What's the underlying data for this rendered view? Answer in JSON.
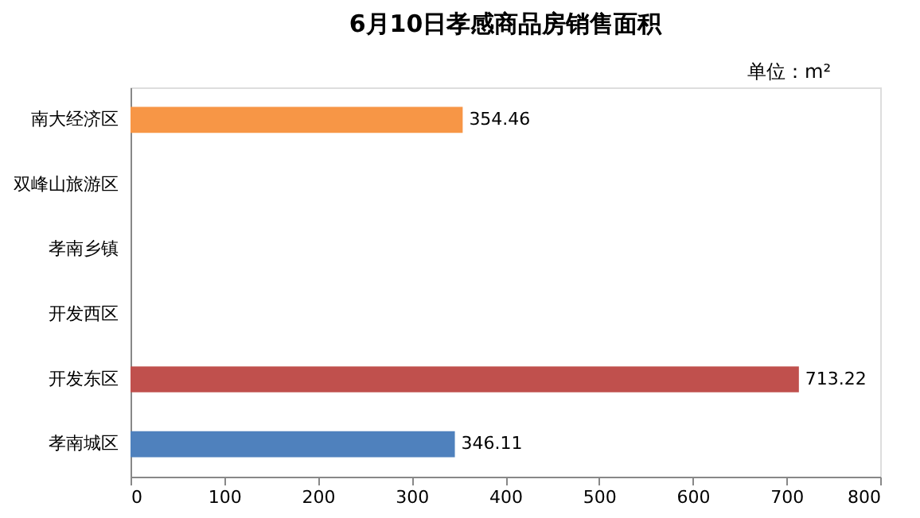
{
  "chart_data": {
    "type": "bar",
    "orientation": "horizontal",
    "title": "6月10日孝感商品房销售面积",
    "annotations": [
      "单位：m²"
    ],
    "categories": [
      "南大经济区",
      "双峰山旅游区",
      "孝南乡镇",
      "开发西区",
      "开发东区",
      "孝南城区"
    ],
    "values": [
      354.46,
      null,
      null,
      null,
      713.22,
      346.11
    ],
    "colors": [
      "#f79646",
      "#f79646",
      "#f79646",
      "#f79646",
      "#c0504d",
      "#4f81bd"
    ],
    "xlim": [
      0,
      800
    ],
    "xticks": [
      0,
      100,
      200,
      300,
      400,
      500,
      600,
      700,
      800
    ],
    "data_labels": true
  }
}
